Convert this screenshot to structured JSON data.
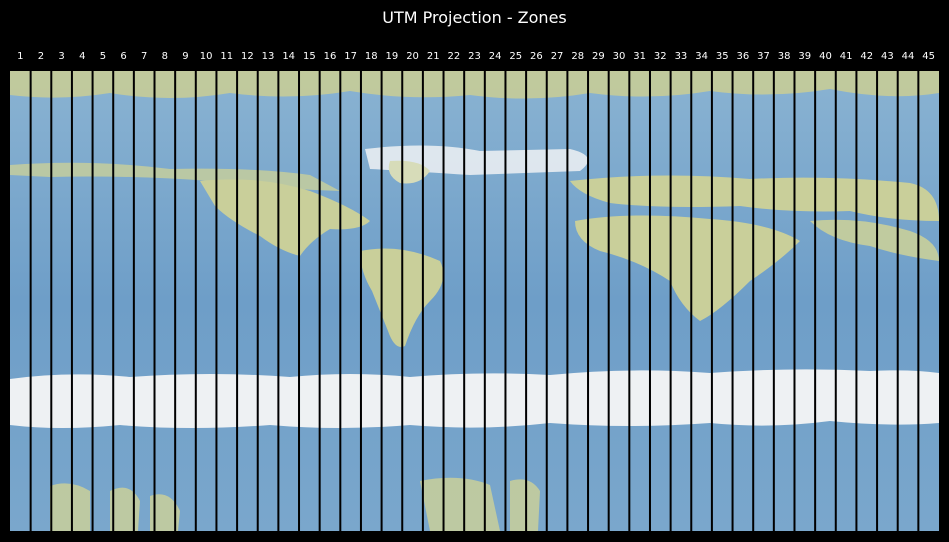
{
  "title": "UTM Projection - Zones",
  "zones": [
    "1",
    "2",
    "3",
    "4",
    "5",
    "6",
    "7",
    "8",
    "9",
    "10",
    "11",
    "12",
    "13",
    "14",
    "15",
    "16",
    "17",
    "18",
    "19",
    "20",
    "21",
    "22",
    "23",
    "24",
    "25",
    "26",
    "27",
    "28",
    "29",
    "30",
    "31",
    "32",
    "33",
    "34",
    "35",
    "36",
    "37",
    "38",
    "39",
    "40",
    "41",
    "42",
    "43",
    "44",
    "45"
  ],
  "colors": {
    "background": "#000000",
    "ocean": "#7aa7cc",
    "land": "#c9cf9a",
    "ice": "#eef1f3",
    "zone_line": "#000000"
  }
}
